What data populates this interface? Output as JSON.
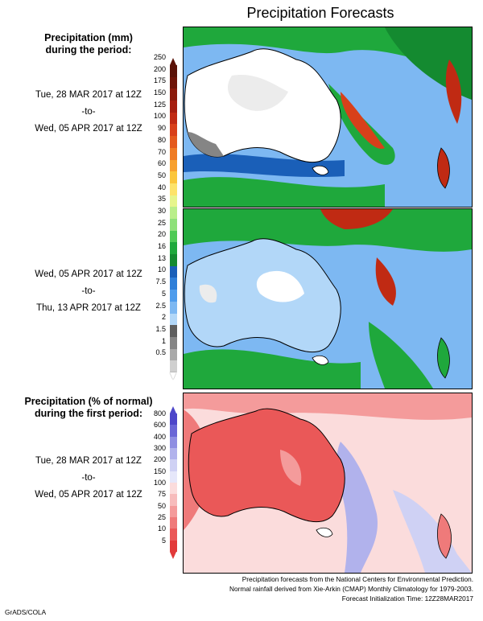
{
  "header": {
    "title": "Precipitation Forecasts"
  },
  "section1": {
    "title_line1": "Precipitation (mm)",
    "title_line2": "during the period:",
    "period1": {
      "start": "Tue, 28 MAR 2017 at 12Z",
      "sep": "-to-",
      "end": "Wed, 05 APR 2017 at 12Z"
    },
    "period2": {
      "start": "Wed, 05 APR 2017 at 12Z",
      "sep": "-to-",
      "end": "Thu, 13 APR 2017 at 12Z"
    },
    "colorbar": [
      {
        "label": "250",
        "color": "#5a1208"
      },
      {
        "label": "200",
        "color": "#6e1408"
      },
      {
        "label": "175",
        "color": "#8a1a0c"
      },
      {
        "label": "150",
        "color": "#a51e0f"
      },
      {
        "label": "125",
        "color": "#c02a13"
      },
      {
        "label": "100",
        "color": "#d8401a"
      },
      {
        "label": "90",
        "color": "#e45a1e"
      },
      {
        "label": "80",
        "color": "#ef7b24"
      },
      {
        "label": "70",
        "color": "#f7a02e"
      },
      {
        "label": "60",
        "color": "#fbc63c"
      },
      {
        "label": "50",
        "color": "#fde36b"
      },
      {
        "label": "40",
        "color": "#e6f58c"
      },
      {
        "label": "35",
        "color": "#b9ee8a"
      },
      {
        "label": "30",
        "color": "#8ee07a"
      },
      {
        "label": "25",
        "color": "#4fca56"
      },
      {
        "label": "20",
        "color": "#1fa83c"
      },
      {
        "label": "16",
        "color": "#148a30"
      },
      {
        "label": "13",
        "color": "#1a5fb8"
      },
      {
        "label": "10",
        "color": "#2f7fd8"
      },
      {
        "label": "7.5",
        "color": "#4e9cec"
      },
      {
        "label": "5",
        "color": "#7db8f2"
      },
      {
        "label": "2.5",
        "color": "#b2d7f8"
      },
      {
        "label": "2",
        "color": "#5e5e5e"
      },
      {
        "label": "1.5",
        "color": "#858585"
      },
      {
        "label": "1",
        "color": "#a9a9a9"
      },
      {
        "label": "0.5",
        "color": "#cfcfcf"
      }
    ]
  },
  "section2": {
    "title_line1": "Precipitation (% of normal)",
    "title_line2": "during the first period:",
    "period": {
      "start": "Tue, 28 MAR 2017 at 12Z",
      "sep": "-to-",
      "end": "Wed, 05 APR 2017 at 12Z"
    },
    "colorbar": [
      {
        "label": "800",
        "color": "#4d46c9"
      },
      {
        "label": "600",
        "color": "#6a66d6"
      },
      {
        "label": "400",
        "color": "#8f8ee2"
      },
      {
        "label": "300",
        "color": "#b1b2ec"
      },
      {
        "label": "200",
        "color": "#cfd1f4"
      },
      {
        "label": "150",
        "color": "#e6e7fa"
      },
      {
        "label": "100",
        "color": "#fbdcdc"
      },
      {
        "label": "75",
        "color": "#f7bcbc"
      },
      {
        "label": "50",
        "color": "#f49b9b"
      },
      {
        "label": "25",
        "color": "#ef7a7a"
      },
      {
        "label": "10",
        "color": "#ea5858"
      },
      {
        "label": "5",
        "color": "#e23a3a"
      }
    ]
  },
  "footer": {
    "line1": "Precipitation forecasts from the National Centers for Environmental Prediction.",
    "line2": "Normal rainfall derived from Xie-Arkin (CMAP) Monthly Climatology for 1979-2003.",
    "line3": "Forecast Initialization Time: 12Z28MAR2017"
  },
  "credit": "GrADS/COLA"
}
